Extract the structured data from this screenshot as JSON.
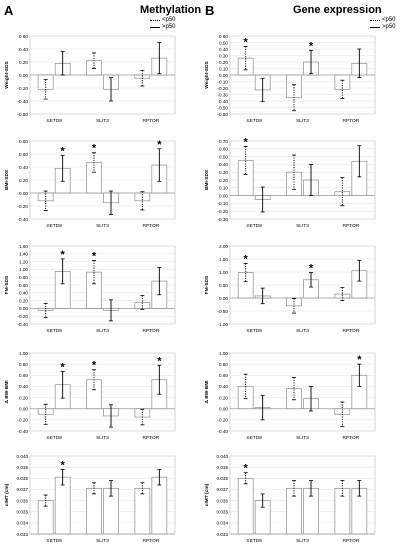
{
  "panels": [
    {
      "letter": "A",
      "title": "Methylation"
    },
    {
      "letter": "B",
      "title": "Gene expression"
    }
  ],
  "legend": {
    "dotted_label": "<p50",
    "solid_label": ">p50"
  },
  "chart_data": [
    {
      "type": "bar",
      "panel": "A",
      "row": 1,
      "ylabel": "Weight-SDS",
      "ylim": [
        -0.6,
        0.6
      ],
      "ticks": [
        "-0.60",
        "-0.40",
        "-0.20",
        "0.00",
        "0.20",
        "0.40",
        "0.60"
      ],
      "categories": [
        "SETD8",
        "SLIT3",
        "RPTOR"
      ],
      "series": [
        {
          "name": "<p50",
          "values": [
            -0.22,
            0.22,
            -0.05
          ],
          "err": [
            0.15,
            0.12,
            0.12
          ],
          "sig": [
            false,
            false,
            false
          ]
        },
        {
          "name": ">p50",
          "values": [
            0.18,
            -0.22,
            0.26
          ],
          "err": [
            0.18,
            0.18,
            0.24
          ],
          "sig": [
            false,
            false,
            false
          ]
        }
      ]
    },
    {
      "type": "bar",
      "panel": "A",
      "row": 2,
      "ylabel": "BMI-SDS",
      "ylim": [
        -0.4,
        0.8
      ],
      "ticks": [
        "-0.40",
        "-0.20",
        "0.00",
        "0.20",
        "0.40",
        "0.60",
        "0.80"
      ],
      "categories": [
        "SETD8",
        "SLIT3",
        "RPTOR"
      ],
      "series": [
        {
          "name": "<p50",
          "values": [
            -0.12,
            0.47,
            -0.12
          ],
          "err": [
            0.15,
            0.15,
            0.14
          ],
          "sig": [
            false,
            true,
            false
          ]
        },
        {
          "name": ">p50",
          "values": [
            0.38,
            -0.15,
            0.43
          ],
          "err": [
            0.2,
            0.18,
            0.25
          ],
          "sig": [
            true,
            false,
            true
          ]
        }
      ]
    },
    {
      "type": "bar",
      "panel": "A",
      "row": 3,
      "ylabel": "FM-SDS",
      "ylim": [
        -0.4,
        1.6
      ],
      "ticks": [
        "-0.40",
        "-0.20",
        "0.00",
        "0.20",
        "0.40",
        "0.60",
        "0.80",
        "1.00",
        "1.20",
        "1.40",
        "1.60"
      ],
      "categories": [
        "SETD8",
        "SLIT3",
        "RPTOR"
      ],
      "series": [
        {
          "name": "<p50",
          "values": [
            -0.05,
            0.93,
            0.15
          ],
          "err": [
            0.18,
            0.3,
            0.18
          ],
          "sig": [
            false,
            true,
            false
          ]
        },
        {
          "name": ">p50",
          "values": [
            0.95,
            -0.05,
            0.7
          ],
          "err": [
            0.32,
            0.27,
            0.35
          ],
          "sig": [
            true,
            false,
            false
          ]
        }
      ]
    },
    {
      "type": "bar",
      "panel": "A",
      "row": 4,
      "ylabel": "Δ BW-BMI",
      "ylim": [
        -0.4,
        1.0
      ],
      "ticks": [
        "-0.40",
        "-0.20",
        "0.00",
        "0.20",
        "0.40",
        "0.60",
        "0.80",
        "1.00"
      ],
      "categories": [
        "SETD8",
        "SLIT3",
        "RPTOR"
      ],
      "series": [
        {
          "name": "<p50",
          "values": [
            -0.1,
            0.52,
            -0.15
          ],
          "err": [
            0.18,
            0.18,
            0.14
          ],
          "sig": [
            false,
            true,
            false
          ]
        },
        {
          "name": ">p50",
          "values": [
            0.43,
            -0.13,
            0.52
          ],
          "err": [
            0.24,
            0.2,
            0.26
          ],
          "sig": [
            true,
            false,
            true
          ]
        }
      ]
    },
    {
      "type": "bar",
      "panel": "A",
      "row": 5,
      "ylabel": "cIMT (cm)",
      "ylim": [
        0.033,
        0.04
      ],
      "ticks": [
        "0.033",
        "0.034",
        "0.035",
        "0.036",
        "0.037",
        "0.038",
        "0.039",
        "0.040"
      ],
      "categories": [
        "SETD8",
        "SLIT3",
        "RPTOR"
      ],
      "series": [
        {
          "name": "<p50",
          "values": [
            0.036,
            0.0371,
            0.0371
          ],
          "err": [
            0.0005,
            0.0005,
            0.0005
          ],
          "sig": [
            false,
            false,
            false
          ]
        },
        {
          "name": ">p50",
          "values": [
            0.0381,
            0.0371,
            0.0381
          ],
          "err": [
            0.0007,
            0.0007,
            0.0007
          ],
          "sig": [
            true,
            false,
            false
          ]
        }
      ]
    },
    {
      "type": "bar",
      "panel": "B",
      "row": 1,
      "ylabel": "Weight-SDS",
      "ylim": [
        -0.6,
        0.6
      ],
      "ticks": [
        "-0.60",
        "-0.50",
        "-0.40",
        "-0.30",
        "-0.20",
        "-0.10",
        "0.00",
        "0.10",
        "0.20",
        "0.30",
        "0.40",
        "0.50",
        "0.60"
      ],
      "categories": [
        "SETD8",
        "SLIT3",
        "RPTOR"
      ],
      "series": [
        {
          "name": "<p50",
          "values": [
            0.26,
            -0.35,
            -0.22
          ],
          "err": [
            0.18,
            0.2,
            0.14
          ],
          "sig": [
            true,
            false,
            false
          ]
        },
        {
          "name": ">p50",
          "values": [
            -0.23,
            0.2,
            0.18
          ],
          "err": [
            0.18,
            0.18,
            0.22
          ],
          "sig": [
            false,
            true,
            false
          ]
        }
      ]
    },
    {
      "type": "bar",
      "panel": "B",
      "row": 2,
      "ylabel": "BMI-SDS",
      "ylim": [
        -0.3,
        0.7
      ],
      "ticks": [
        "-0.30",
        "-0.20",
        "-0.10",
        "0.00",
        "0.10",
        "0.20",
        "0.30",
        "0.40",
        "0.50",
        "0.60",
        "0.70"
      ],
      "categories": [
        "SETD8",
        "SLIT3",
        "RPTOR"
      ],
      "series": [
        {
          "name": "<p50",
          "values": [
            0.45,
            0.3,
            0.05
          ],
          "err": [
            0.18,
            0.22,
            0.18
          ],
          "sig": [
            true,
            false,
            false
          ]
        },
        {
          "name": ">p50",
          "values": [
            -0.05,
            0.2,
            0.44
          ],
          "err": [
            0.16,
            0.2,
            0.2
          ],
          "sig": [
            false,
            false,
            false
          ]
        }
      ]
    },
    {
      "type": "bar",
      "panel": "B",
      "row": 3,
      "ylabel": "FM-SDS",
      "ylim": [
        -1.0,
        2.0
      ],
      "ticks": [
        "-1.00",
        "-0.50",
        "0.00",
        "0.50",
        "1.00",
        "1.50",
        "2.00"
      ],
      "categories": [
        "SETD8",
        "SLIT3",
        "RPTOR"
      ],
      "series": [
        {
          "name": "<p50",
          "values": [
            0.98,
            -0.3,
            0.15
          ],
          "err": [
            0.35,
            0.28,
            0.25
          ],
          "sig": [
            true,
            false,
            false
          ]
        },
        {
          "name": ">p50",
          "values": [
            0.08,
            0.7,
            1.05
          ],
          "err": [
            0.3,
            0.28,
            0.4
          ],
          "sig": [
            false,
            true,
            false
          ]
        }
      ]
    },
    {
      "type": "bar",
      "panel": "B",
      "row": 4,
      "ylabel": "Δ BW-BMI",
      "ylim": [
        -0.4,
        1.0
      ],
      "ticks": [
        "-0.40",
        "-0.20",
        "0.00",
        "0.20",
        "0.40",
        "0.60",
        "0.80",
        "1.00"
      ],
      "categories": [
        "SETD8",
        "SLIT3",
        "RPTOR"
      ],
      "series": [
        {
          "name": "<p50",
          "values": [
            0.4,
            0.36,
            -0.1
          ],
          "err": [
            0.22,
            0.2,
            0.22
          ],
          "sig": [
            false,
            false,
            false
          ]
        },
        {
          "name": ">p50",
          "values": [
            0.02,
            0.18,
            0.6
          ],
          "err": [
            0.22,
            0.22,
            0.2
          ],
          "sig": [
            false,
            false,
            true
          ]
        }
      ]
    },
    {
      "type": "bar",
      "panel": "B",
      "row": 5,
      "ylabel": "cIMT (cm)",
      "ylim": [
        0.033,
        0.04
      ],
      "ticks": [
        "0.033",
        "0.034",
        "0.035",
        "0.036",
        "0.037",
        "0.038",
        "0.039",
        "0.040"
      ],
      "categories": [
        "SETD8",
        "SLIT3",
        "RPTOR"
      ],
      "series": [
        {
          "name": "<p50",
          "values": [
            0.038,
            0.0371,
            0.0371
          ],
          "err": [
            0.0005,
            0.0007,
            0.0007
          ],
          "sig": [
            true,
            false,
            false
          ]
        },
        {
          "name": ">p50",
          "values": [
            0.036,
            0.0371,
            0.0371
          ],
          "err": [
            0.0006,
            0.0007,
            0.0007
          ],
          "sig": [
            false,
            false,
            false
          ]
        }
      ]
    }
  ]
}
